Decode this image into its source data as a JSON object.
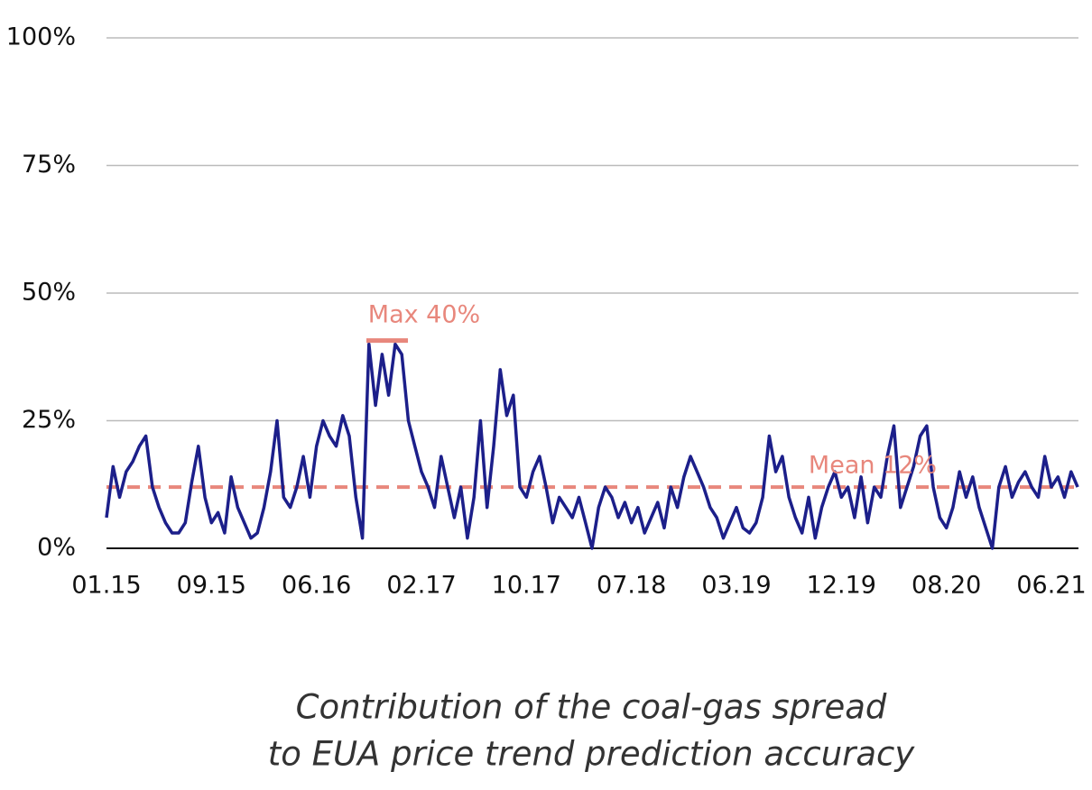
{
  "chart_data": {
    "type": "line",
    "title_lines": [
      "Contribution of the coal-gas spread",
      "to EUA price trend prediction accuracy"
    ],
    "categories": [
      "01.15",
      null,
      null,
      null,
      null,
      null,
      null,
      null,
      null,
      null,
      null,
      null,
      null,
      null,
      null,
      null,
      "09.15",
      null,
      null,
      null,
      null,
      null,
      null,
      null,
      null,
      null,
      null,
      null,
      null,
      null,
      null,
      null,
      "06.16",
      null,
      null,
      null,
      null,
      null,
      null,
      null,
      null,
      null,
      null,
      null,
      null,
      null,
      null,
      null,
      "02.17",
      null,
      null,
      null,
      null,
      null,
      null,
      null,
      null,
      null,
      null,
      null,
      null,
      null,
      null,
      null,
      "10.17",
      null,
      null,
      null,
      null,
      null,
      null,
      null,
      null,
      null,
      null,
      null,
      null,
      null,
      null,
      null,
      "07.18",
      null,
      null,
      null,
      null,
      null,
      null,
      null,
      null,
      null,
      null,
      null,
      null,
      null,
      null,
      null,
      "03.19",
      null,
      null,
      null,
      null,
      null,
      null,
      null,
      null,
      null,
      null,
      null,
      null,
      null,
      null,
      null,
      "12.19",
      null,
      null,
      null,
      null,
      null,
      null,
      null,
      null,
      null,
      null,
      null,
      null,
      null,
      null,
      null,
      "08.20",
      null,
      null,
      null,
      null,
      null,
      null,
      null,
      null,
      null,
      null,
      null,
      null,
      null,
      null,
      null,
      "06.21",
      null,
      null,
      null,
      null
    ],
    "series": [
      {
        "color": "#1c1f8a",
        "values": [
          6,
          16,
          10,
          15,
          17,
          20,
          22,
          12,
          8,
          5,
          3,
          3,
          5,
          13,
          20,
          10,
          5,
          7,
          3,
          14,
          8,
          5,
          2,
          3,
          8,
          15,
          25,
          10,
          8,
          12,
          18,
          10,
          20,
          25,
          22,
          20,
          26,
          22,
          10,
          2,
          40,
          28,
          38,
          30,
          40,
          38,
          25,
          20,
          15,
          12,
          8,
          18,
          12,
          6,
          12,
          2,
          10,
          25,
          8,
          20,
          35,
          26,
          30,
          12,
          10,
          15,
          18,
          12,
          5,
          10,
          8,
          6,
          10,
          5,
          0,
          8,
          12,
          10,
          6,
          9,
          5,
          8,
          3,
          6,
          9,
          4,
          12,
          8,
          14,
          18,
          15,
          12,
          8,
          6,
          2,
          5,
          8,
          4,
          3,
          5,
          10,
          22,
          15,
          18,
          10,
          6,
          3,
          10,
          2,
          8,
          12,
          15,
          10,
          12,
          6,
          14,
          5,
          12,
          10,
          18,
          24,
          8,
          12,
          16,
          22,
          24,
          12,
          6,
          4,
          8,
          15,
          10,
          14,
          8,
          4,
          0,
          12,
          16,
          10,
          13,
          15,
          12,
          10,
          18,
          12,
          14,
          10,
          15,
          12
        ]
      }
    ],
    "ylim": [
      0,
      100
    ],
    "yticks": [
      {
        "value": 0,
        "label": "0%"
      },
      {
        "value": 25,
        "label": "25%"
      },
      {
        "value": 50,
        "label": "50%"
      },
      {
        "value": 75,
        "label": "75%"
      },
      {
        "value": 100,
        "label": "100%"
      }
    ],
    "grid": true,
    "annotations": [
      {
        "text": "Max 40%",
        "value": 40,
        "color": "#e8877c"
      },
      {
        "text": "Mean 12%",
        "value": 12,
        "color": "#e8877c"
      }
    ]
  }
}
